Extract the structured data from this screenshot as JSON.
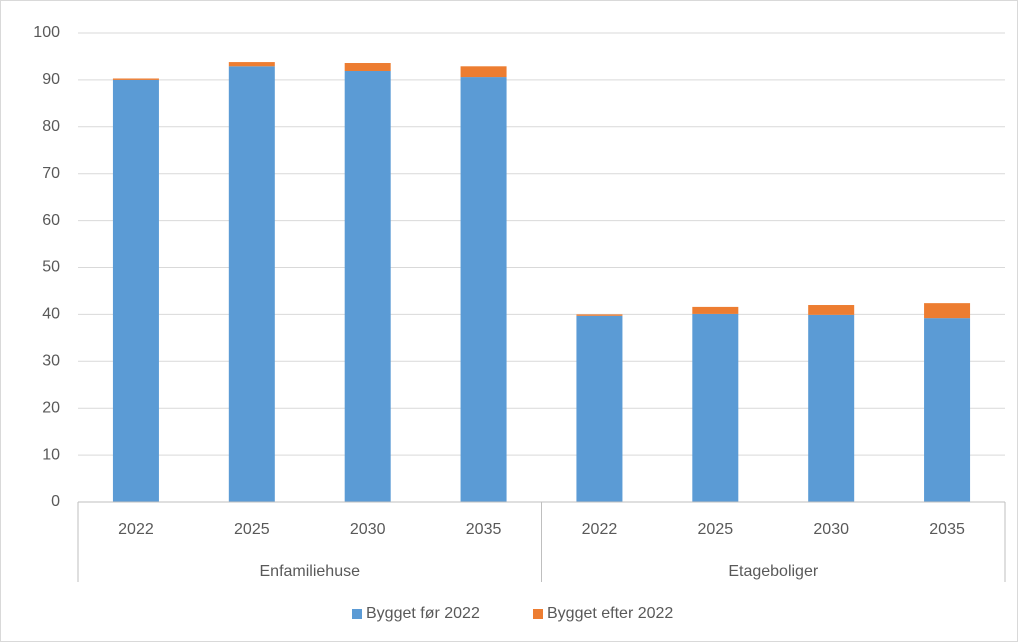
{
  "chart_data": {
    "type": "stacked_bar",
    "groups": [
      {
        "name": "Enfamiliehuse",
        "categories": [
          "2022",
          "2025",
          "2030",
          "2035"
        ]
      },
      {
        "name": "Etageboliger",
        "categories": [
          "2022",
          "2025",
          "2030",
          "2035"
        ]
      }
    ],
    "series": [
      {
        "name": "Bygget før 2022",
        "color": "#5b9bd5",
        "values": [
          90,
          92.9,
          91.9,
          90.6,
          39.7,
          40.1,
          39.9,
          39.2
        ]
      },
      {
        "name": "Bygget efter 2022",
        "color": "#ed7d31",
        "values": [
          0.3,
          0.9,
          1.7,
          2.3,
          0.3,
          1.5,
          2.1,
          3.2
        ]
      }
    ],
    "ylim": [
      0,
      100
    ],
    "yticks": [
      0,
      10,
      20,
      30,
      40,
      50,
      60,
      70,
      80,
      90,
      100
    ],
    "grid": true,
    "legend": "bottom"
  }
}
